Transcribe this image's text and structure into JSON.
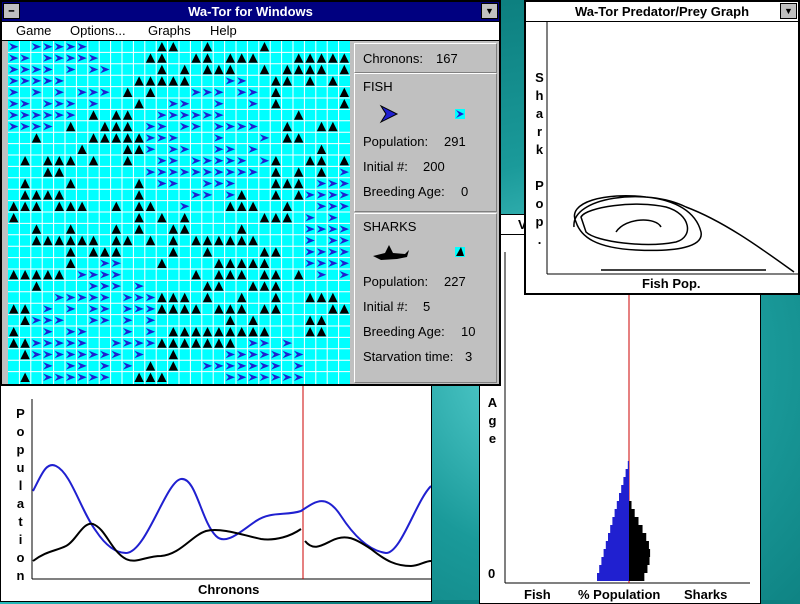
{
  "main_window": {
    "title": "Wa-Tor for Windows",
    "menu": [
      "Game",
      "Options...",
      "Graphs",
      "Help"
    ]
  },
  "status": {
    "chronons_label": "Chronons:",
    "chronons": 167,
    "fish": {
      "heading": "FISH",
      "population_label": "Population:",
      "population": 291,
      "initial_label": "Initial #:",
      "initial": 200,
      "breeding_label": "Breeding Age:",
      "breeding_age": 0
    },
    "sharks": {
      "heading": "SHARKS",
      "population_label": "Population:",
      "population": 227,
      "initial_label": "Initial #:",
      "initial": 5,
      "breeding_label": "Breeding Age:",
      "breeding_age": 10,
      "starvation_label": "Starvation time:",
      "starvation_time": 3
    }
  },
  "predator_prey_window": {
    "title": "Wa-Tor Predator/Prey Graph",
    "y_label": "Shark Pop.",
    "x_label": "Fish Pop."
  },
  "population_window": {
    "y_label": "Population",
    "x_label": "Chronons"
  },
  "age_window": {
    "title_fragment": "V",
    "y_label": "Age",
    "y_origin": "0",
    "left_label": "Fish",
    "center_label": "% Population",
    "right_label": "Sharks"
  }
}
